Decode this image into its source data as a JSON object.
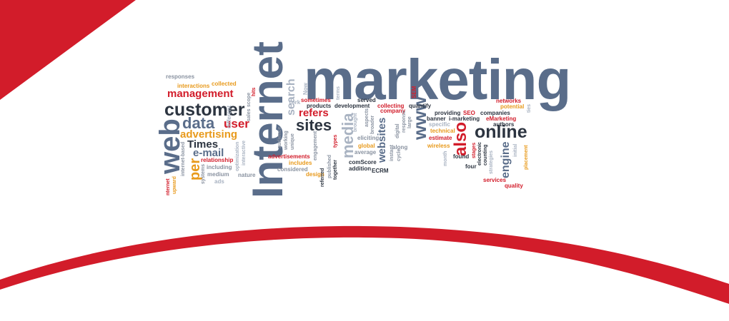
{
  "colors": {
    "red": "#d21c2a",
    "slate": "#5a6d8a",
    "dark": "#2c3440",
    "orange": "#e89a1c",
    "grey": "#8a93a1"
  },
  "words": {
    "marketing": "marketing",
    "internet": "Internet",
    "web": "web",
    "customer": "customer",
    "data": "data",
    "user": "user",
    "management": "management",
    "advertising": "advertising",
    "times": "Times",
    "email": "e-mail",
    "per": "per",
    "online": "online",
    "also": "also",
    "www": "www",
    "sites": "sites",
    "media": "media",
    "refers": "refers",
    "websites": "websites",
    "engine": "engine",
    "search": "search",
    "responses": "responses",
    "collected": "collected",
    "interactions": "interactions",
    "relationship": "relationship",
    "including": "including",
    "medium": "medium",
    "ads": "ads",
    "nature": "nature",
    "systems": "systems",
    "considered": "considered",
    "design": "design",
    "includes": "includes",
    "advertisements": "advertisements",
    "comscore": "comScore",
    "addition": "addition",
    "ecrm": "ECRM",
    "average": "average",
    "eliciting": "eliciting",
    "global": "global",
    "along": "along",
    "served": "served",
    "collecting": "collecting",
    "company": "company",
    "products": "products",
    "development": "development",
    "sometimes": "sometimes",
    "providing": "providing",
    "seo": "SEO",
    "companies": "companies",
    "networks": "networks",
    "potential": "potential",
    "banner": "banner",
    "imarketing": "i-marketing",
    "emarketing": "eMarketing",
    "specific": "specific",
    "authors": "authors",
    "technical": "technical",
    "estimate": "estimate",
    "wireless": "wireless",
    "found": "found",
    "four": "four",
    "stages": "stages",
    "services": "services",
    "quality": "quality",
    "quantify": "quantify",
    "sem": "SEM",
    "now": "Now",
    "york": "York",
    "different": "different",
    "scope": "scope",
    "hits": "hits",
    "sales": "sales",
    "upward": "upward",
    "internetbased": "internet-based",
    "nternet": "nternet",
    "strategies": "strategies",
    "counting": "counting",
    "electronic": "electronic",
    "placement": "placement",
    "initial": "initial",
    "month": "month",
    "digital": "digital",
    "instant": "instant",
    "cycle": "cycle",
    "together": "together",
    "published": "published",
    "referred": "referred",
    "types": "types",
    "unique": "unique",
    "working": "working",
    "audience": "audience",
    "engagement": "engagement",
    "interactive": "interactive",
    "optimization": "optimization",
    "brought": "brought",
    "aspects": "aspects",
    "broader": "broader",
    "terms": "terms",
    "large": "large",
    "response": "response",
    "ties": "ties"
  }
}
